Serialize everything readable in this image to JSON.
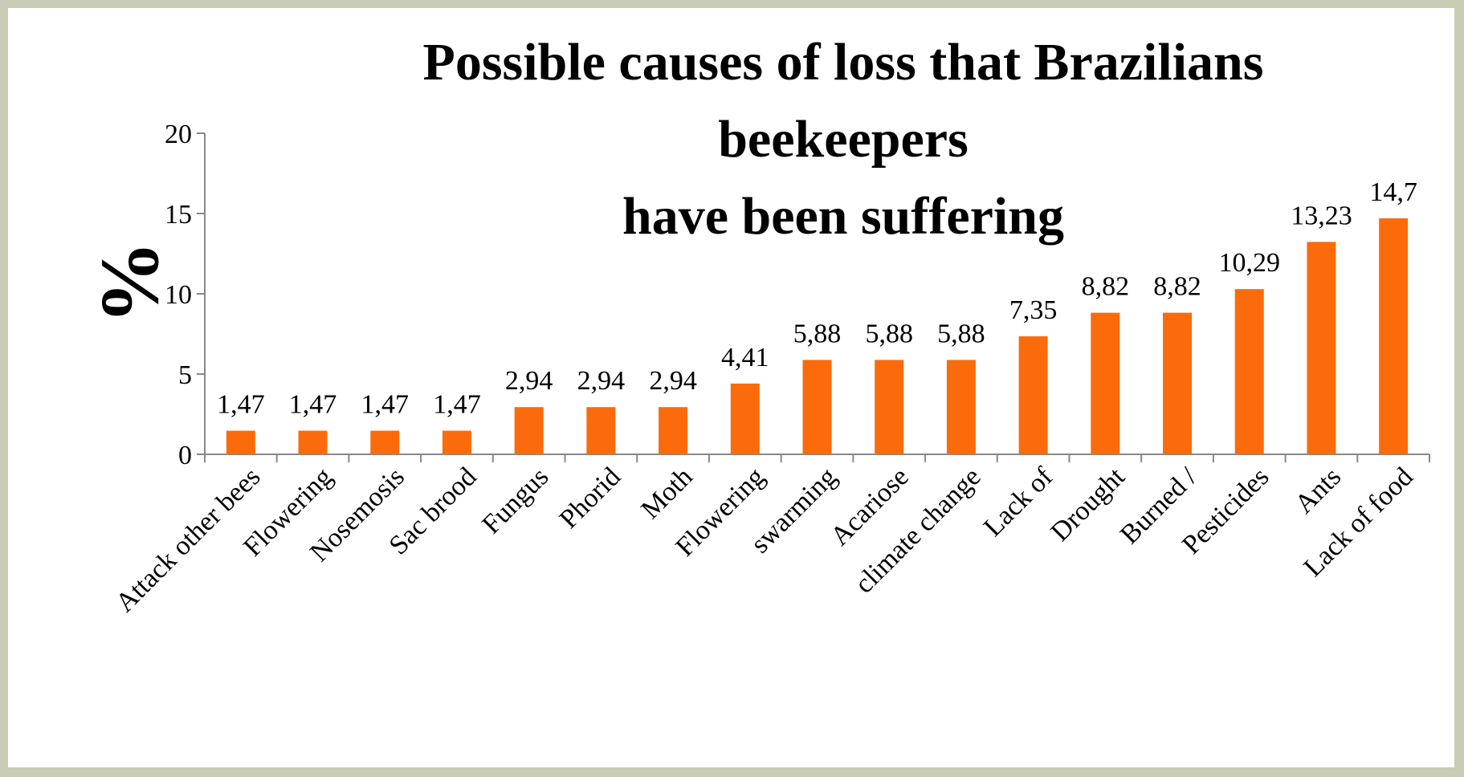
{
  "title_lines": [
    "Possible causes of loss that Brazilians",
    "beekeepers",
    "have been suffering"
  ],
  "colors": {
    "bar": "#fb6b0b",
    "axis": "#888888",
    "background": "#c9cbb4"
  },
  "chart_data": {
    "type": "bar",
    "title": "Possible causes of loss that Brazilians beekeepers have been suffering",
    "xlabel": "",
    "ylabel": "%",
    "ylim": [
      0,
      20
    ],
    "yticks": [
      0,
      5,
      10,
      15,
      20
    ],
    "grid": false,
    "legend": "none",
    "categories": [
      "Attack other bees",
      "Flowering",
      "Nosemosis",
      "Sac brood",
      "Fungus",
      "Phorid",
      "Moth",
      "Flowering",
      "swarming",
      "Acariose",
      "climate change",
      "Lack of",
      "Drought",
      "Burned /",
      "Pesticides",
      "Ants",
      "Lack of food"
    ],
    "values": [
      1.47,
      1.47,
      1.47,
      1.47,
      2.94,
      2.94,
      2.94,
      4.41,
      5.88,
      5.88,
      5.88,
      7.35,
      8.82,
      8.82,
      10.29,
      13.23,
      14.7
    ],
    "data_labels": [
      "1,47",
      "1,47",
      "1,47",
      "1,47",
      "2,94",
      "2,94",
      "2,94",
      "4,41",
      "5,88",
      "5,88",
      "5,88",
      "7,35",
      "8,82",
      "8,82",
      "10,29",
      "13,23",
      "14,7"
    ]
  }
}
